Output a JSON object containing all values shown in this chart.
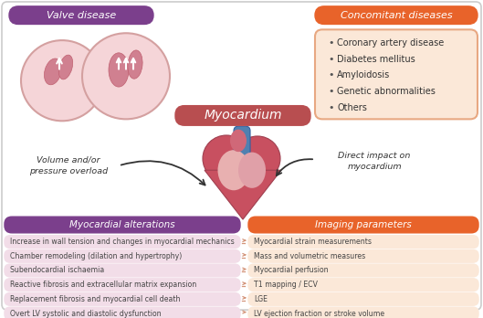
{
  "bg_color": "#ffffff",
  "valve_disease_title": "Valve disease",
  "valve_disease_title_color": "#ffffff",
  "valve_disease_box_color": "#7b3f8c",
  "concomitant_title": "Concomitant diseases",
  "concomitant_title_color": "#ffffff",
  "concomitant_box_color": "#e8632a",
  "concomitant_bg_color": "#fbe8d8",
  "concomitant_border_color": "#e8a882",
  "concomitant_items": [
    "Coronary artery disease",
    "Diabetes mellitus",
    "Amyloidosis",
    "Genetic abnormalities",
    "Others"
  ],
  "myocardium_label": "Myocardium",
  "myocardium_box_color": "#b84e50",
  "myocardium_text_color": "#ffffff",
  "arrow_left_text": "Volume and/or\npressure overload",
  "arrow_right_text": "Direct impact on\nmyocardium",
  "arrow_color": "#333333",
  "myocardial_alt_title": "Myocardial alterations",
  "myocardial_alt_title_color": "#ffffff",
  "myocardial_alt_box_color": "#7b3f8c",
  "myocardial_alt_rows_color": "#f2dde8",
  "myocardial_alt_items": [
    "Increase in wall tension and changes in myocardial mechanics",
    "Chamber remodeling (dilation and hypertrophy)",
    "Subendocardial ischaemia",
    "Reactive fibrosis and extracellular matrix expansion",
    "Replacement fibrosis and myocardial cell death",
    "Overt LV systolic and diastolic dysfunction"
  ],
  "imaging_title": "Imaging parameters",
  "imaging_title_color": "#ffffff",
  "imaging_box_color": "#e8632a",
  "imaging_rows_color": "#fbe8d8",
  "imaging_items": [
    "Myocardial strain measurements",
    "Mass and volumetric measures",
    "Myocardial perfusion",
    "T1 mapping / ECV",
    "LGE",
    "LV ejection fraction or stroke volume"
  ],
  "arrow_double_color": "#d4957a",
  "border_color": "#cccccc",
  "circ1_color": "#f5d5d8",
  "circ2_color": "#f5d5d8",
  "circ_edge_color": "#d4a0a0",
  "heart_outer_color": "#c85060",
  "heart_inner_color": "#e8b0b0",
  "aorta_color": "#5080b0",
  "vessel_color": "#d06878"
}
